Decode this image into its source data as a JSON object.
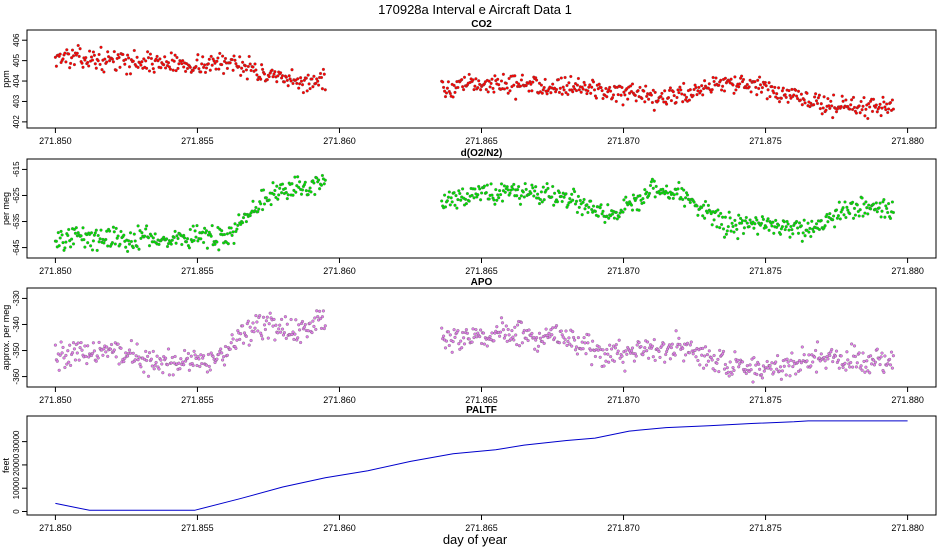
{
  "title": "170928a   Interval e Aircraft Data 1",
  "xlabel": "day of year",
  "chart_data": [
    {
      "type": "scatter",
      "title": "CO2",
      "ylabel": "ppm",
      "xlim": [
        271.849,
        271.881
      ],
      "ylim": [
        401.7,
        406.5
      ],
      "xticks": [
        271.85,
        271.855,
        271.86,
        271.865,
        271.87,
        271.875,
        271.88
      ],
      "xtick_labels": [
        "271.850",
        "271.855",
        "271.860",
        "271.865",
        "271.870",
        "271.875",
        "271.880"
      ],
      "yticks": [
        402,
        403,
        404,
        405,
        406
      ],
      "ytick_labels": [
        "402",
        "403",
        "404",
        "405",
        "406"
      ],
      "color": "#ff0000",
      "segments": [
        {
          "x": [
            271.85,
            271.852,
            271.8535,
            271.855,
            271.8565,
            271.8575,
            271.8585,
            271.8595
          ],
          "y": [
            405.2,
            405.0,
            404.9,
            404.8,
            404.9,
            404.2,
            403.9,
            404.1
          ]
        },
        {
          "x": [
            271.8636,
            271.865,
            271.8665,
            271.868,
            271.8695,
            271.871,
            271.872,
            271.8735,
            271.875,
            271.8765,
            271.878,
            271.8795
          ],
          "y": [
            403.5,
            403.9,
            403.8,
            403.8,
            403.5,
            403.1,
            403.3,
            404.0,
            403.6,
            403.0,
            402.7,
            402.8
          ]
        }
      ],
      "noise": 0.35
    },
    {
      "type": "scatter",
      "title": "d(O2/N2)",
      "ylabel": "per meg",
      "xlim": [
        271.849,
        271.881
      ],
      "ylim": [
        -649,
        -611
      ],
      "xticks": [
        271.85,
        271.855,
        271.86,
        271.865,
        271.87,
        271.875,
        271.88
      ],
      "xtick_labels": [
        "271.850",
        "271.855",
        "271.860",
        "271.865",
        "271.870",
        "271.875",
        "271.880"
      ],
      "yticks": [
        -645,
        -635,
        -625,
        -615
      ],
      "ytick_labels": [
        "-645",
        "-635",
        "-625",
        "-615"
      ],
      "color": "#00e000",
      "segments": [
        {
          "x": [
            271.85,
            271.852,
            271.8535,
            271.855,
            271.856,
            271.8565,
            271.8575,
            271.8585,
            271.8595
          ],
          "y": [
            -642,
            -641,
            -642,
            -641,
            -641,
            -636,
            -625,
            -622,
            -620
          ]
        },
        {
          "x": [
            271.8636,
            271.865,
            271.8665,
            271.868,
            271.8695,
            271.871,
            271.872,
            271.8735,
            271.875,
            271.8765,
            271.878,
            271.8795
          ],
          "y": [
            -627,
            -624,
            -624,
            -626,
            -633,
            -623,
            -624,
            -636,
            -636,
            -638,
            -630,
            -630
          ]
        }
      ],
      "noise": 3
    },
    {
      "type": "scatter",
      "title": "APO",
      "ylabel": "approx. per meg",
      "xlim": [
        271.849,
        271.881
      ],
      "ylim": [
        -364,
        -326
      ],
      "xticks": [
        271.85,
        271.855,
        271.86,
        271.865,
        271.87,
        271.875,
        271.88
      ],
      "xtick_labels": [
        "271.850",
        "271.855",
        "271.860",
        "271.865",
        "271.870",
        "271.875",
        "271.880"
      ],
      "yticks": [
        -360,
        -350,
        -340,
        -330
      ],
      "ytick_labels": [
        "-360",
        "-350",
        "-340",
        "-330"
      ],
      "color": "#e07ce8",
      "segments": [
        {
          "x": [
            271.85,
            271.852,
            271.8535,
            271.855,
            271.856,
            271.8565,
            271.8575,
            271.8585,
            271.8595
          ],
          "y": [
            -352,
            -350,
            -355,
            -354,
            -352,
            -344,
            -340,
            -343,
            -338
          ]
        },
        {
          "x": [
            271.8636,
            271.865,
            271.8665,
            271.868,
            271.8695,
            271.871,
            271.872,
            271.8735,
            271.875,
            271.8765,
            271.878,
            271.8795
          ],
          "y": [
            -346,
            -344,
            -344,
            -345,
            -352,
            -350,
            -348,
            -355,
            -357,
            -354,
            -353,
            -355
          ]
        }
      ],
      "noise": 3.5
    },
    {
      "type": "line",
      "title": "PALTF",
      "ylabel": "feet",
      "xlim": [
        271.849,
        271.881
      ],
      "ylim": [
        -1500,
        41000
      ],
      "xticks": [
        271.85,
        271.855,
        271.86,
        271.865,
        271.87,
        271.875,
        271.88
      ],
      "xtick_labels": [
        "271.850",
        "271.855",
        "271.860",
        "271.865",
        "271.870",
        "271.875",
        "271.880"
      ],
      "yticks": [
        0,
        10000,
        20000,
        30000
      ],
      "ytick_labels": [
        "0",
        "10000",
        "20000",
        "30000"
      ],
      "color": "#0000cc",
      "x": [
        271.85,
        271.8512,
        271.853,
        271.8549,
        271.8565,
        271.858,
        271.8595,
        271.861,
        271.8625,
        271.864,
        271.8655,
        271.8665,
        271.868,
        271.869,
        271.8702,
        271.8715,
        271.873,
        271.8745,
        271.876,
        271.8765,
        271.878,
        271.88
      ],
      "y": [
        3500,
        500,
        500,
        500,
        5500,
        10500,
        14500,
        17500,
        21500,
        24800,
        26500,
        28500,
        30500,
        31500,
        34500,
        36000,
        36800,
        37800,
        38500,
        38900,
        38900,
        38900
      ]
    }
  ]
}
